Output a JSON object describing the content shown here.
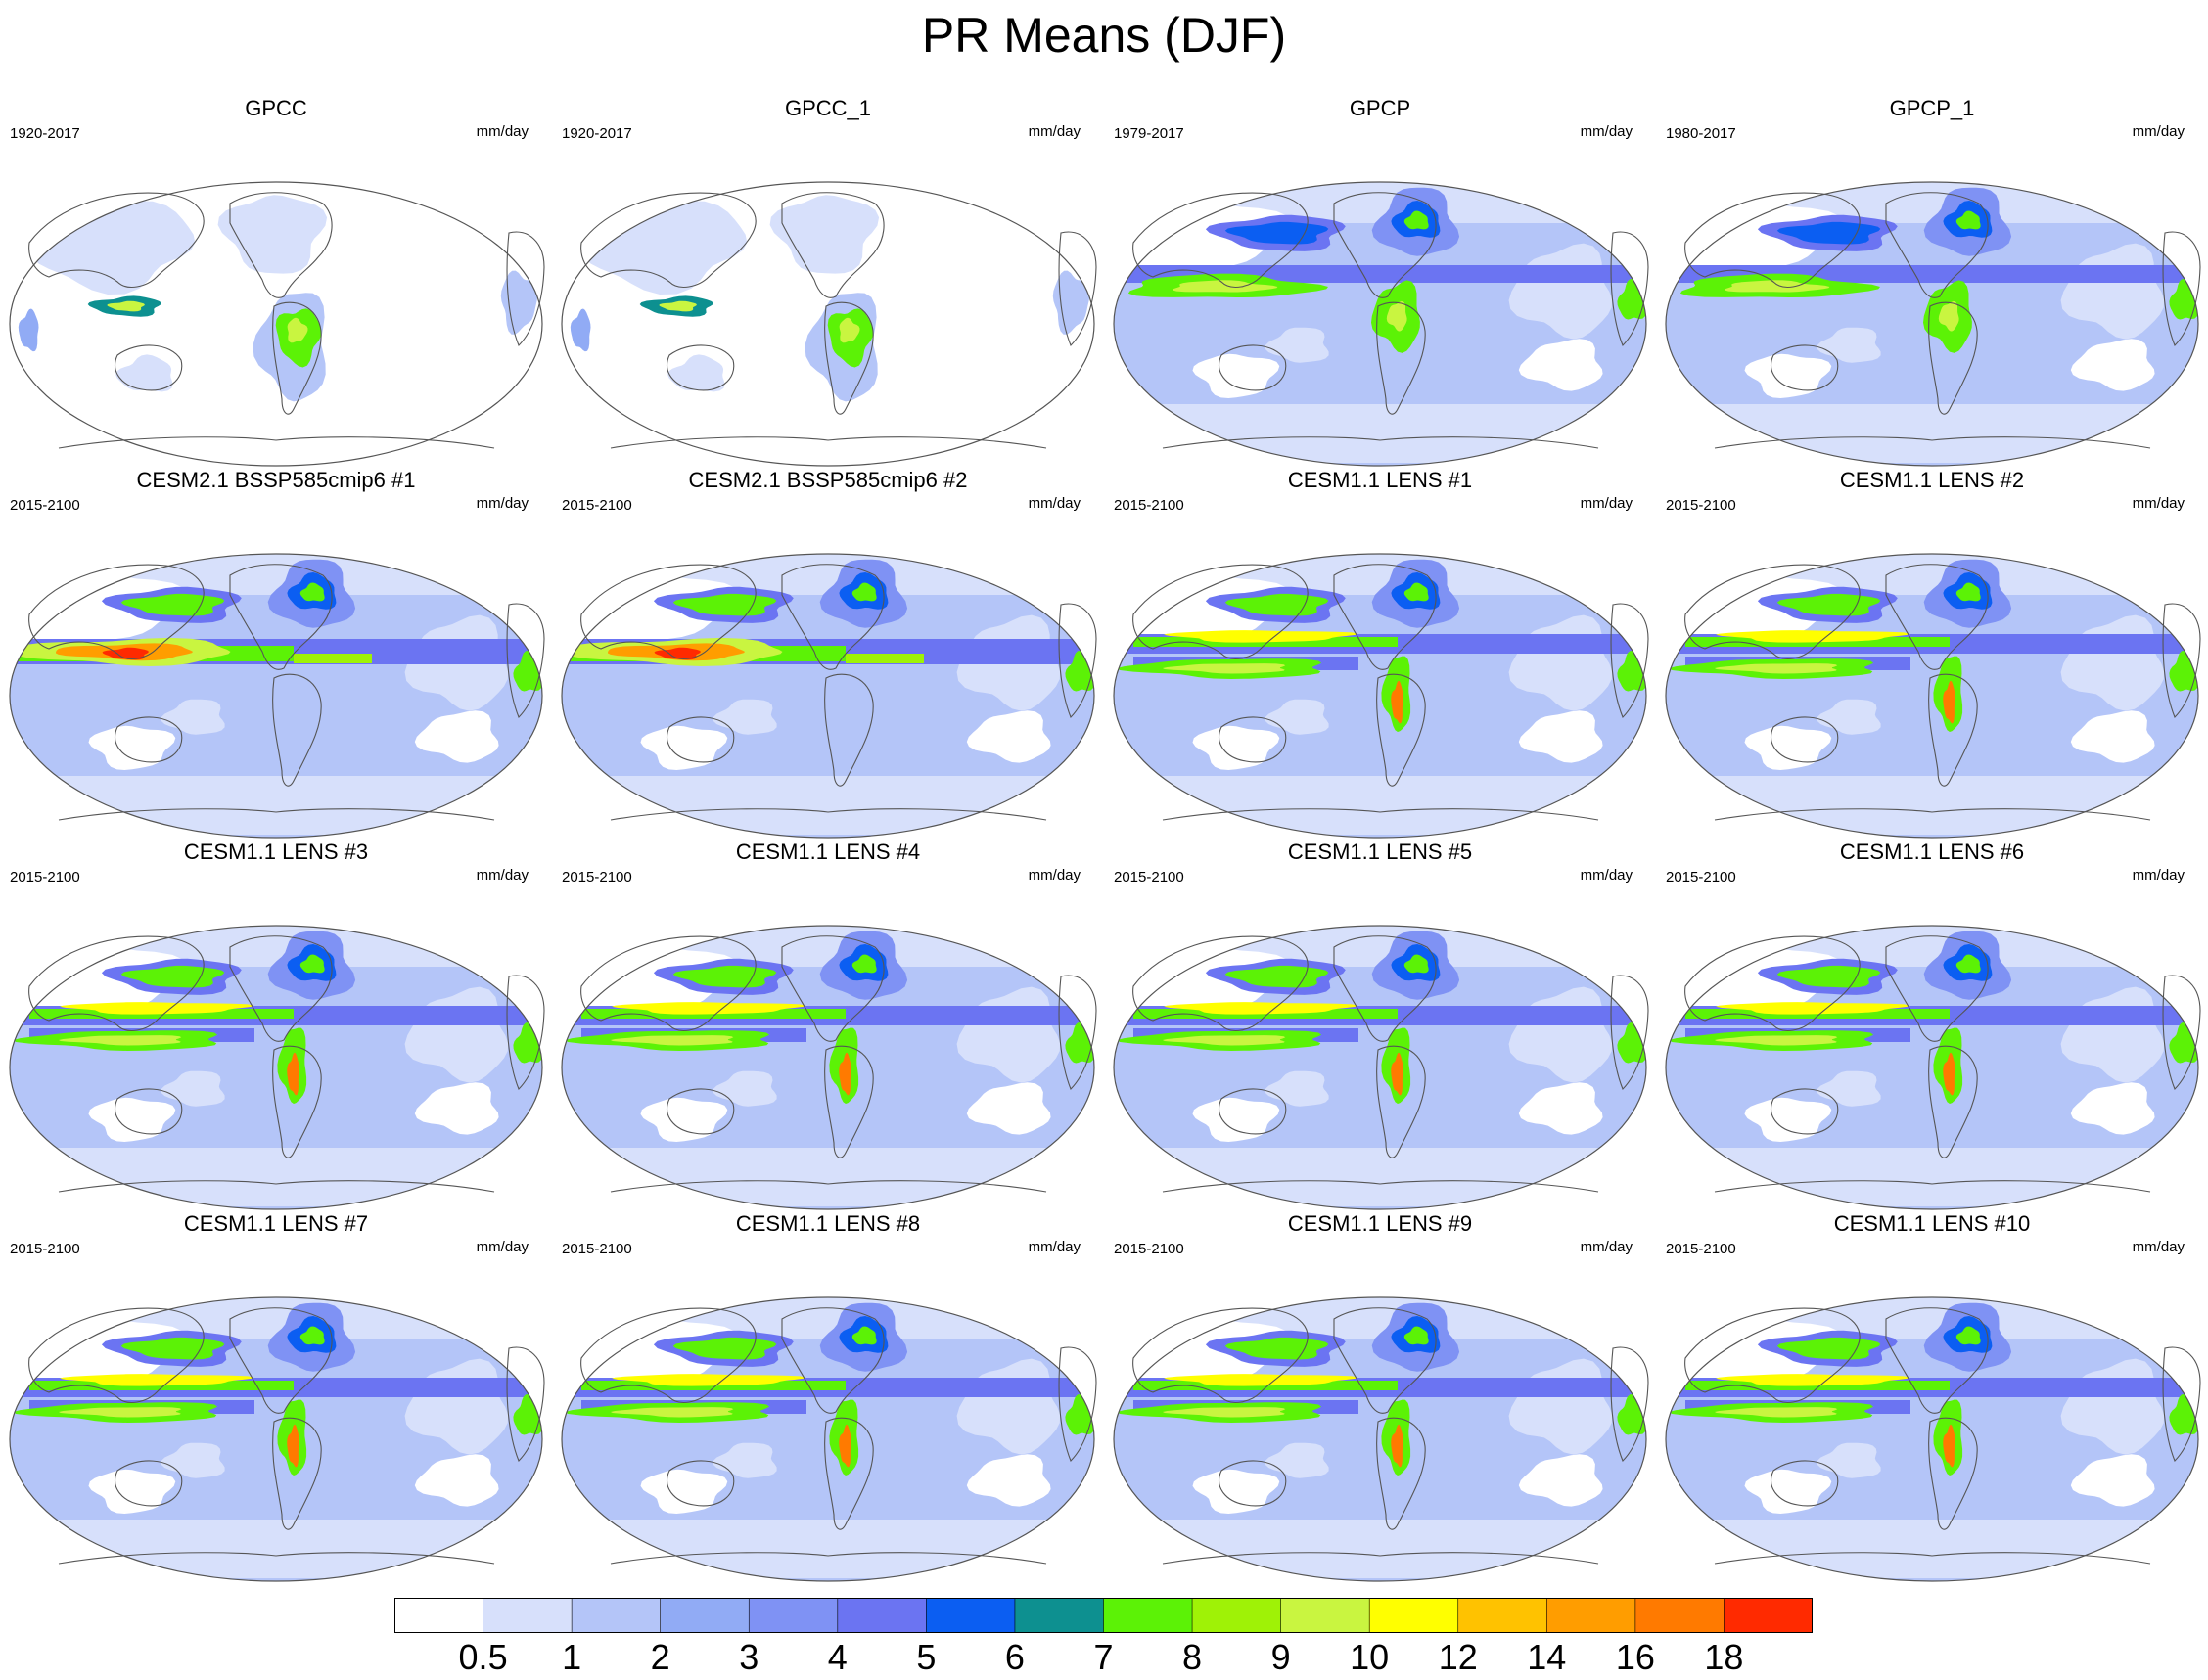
{
  "title": "PR Means (DJF)",
  "colorbar": {
    "colors": [
      "#ffffff",
      "#d7e0fb",
      "#b4c5f8",
      "#91abf5",
      "#7f92f4",
      "#6b74f2",
      "#0b5ef2",
      "#0d9090",
      "#5cf206",
      "#9ff206",
      "#c9f540",
      "#ffff00",
      "#ffc200",
      "#ff9d00",
      "#ff7a00",
      "#ff2a00"
    ],
    "ticks": [
      "0.5",
      "1",
      "2",
      "3",
      "4",
      "5",
      "6",
      "7",
      "8",
      "9",
      "10",
      "12",
      "14",
      "16",
      "18"
    ]
  },
  "panels": [
    {
      "title": "GPCC",
      "years": "1920-2017",
      "units": "mm/day",
      "type": "obs_land"
    },
    {
      "title": "GPCC_1",
      "years": "1920-2017",
      "units": "mm/day",
      "type": "obs_land"
    },
    {
      "title": "GPCP",
      "years": "1979-2017",
      "units": "mm/day",
      "type": "obs_global"
    },
    {
      "title": "GPCP_1",
      "years": "1980-2017",
      "units": "mm/day",
      "type": "obs_global"
    },
    {
      "title": "CESM2.1 BSSP585cmip6 #1",
      "years": "2015-2100",
      "units": "mm/day",
      "type": "cesm2"
    },
    {
      "title": "CESM2.1 BSSP585cmip6 #2",
      "years": "2015-2100",
      "units": "mm/day",
      "type": "cesm2"
    },
    {
      "title": "CESM1.1 LENS #1",
      "years": "2015-2100",
      "units": "mm/day",
      "type": "lens"
    },
    {
      "title": "CESM1.1 LENS #2",
      "years": "2015-2100",
      "units": "mm/day",
      "type": "lens"
    },
    {
      "title": "CESM1.1 LENS #3",
      "years": "2015-2100",
      "units": "mm/day",
      "type": "lens"
    },
    {
      "title": "CESM1.1 LENS #4",
      "years": "2015-2100",
      "units": "mm/day",
      "type": "lens"
    },
    {
      "title": "CESM1.1 LENS #5",
      "years": "2015-2100",
      "units": "mm/day",
      "type": "lens"
    },
    {
      "title": "CESM1.1 LENS #6",
      "years": "2015-2100",
      "units": "mm/day",
      "type": "lens"
    },
    {
      "title": "CESM1.1 LENS #7",
      "years": "2015-2100",
      "units": "mm/day",
      "type": "lens"
    },
    {
      "title": "CESM1.1 LENS #8",
      "years": "2015-2100",
      "units": "mm/day",
      "type": "lens"
    },
    {
      "title": "CESM1.1 LENS #9",
      "years": "2015-2100",
      "units": "mm/day",
      "type": "lens"
    },
    {
      "title": "CESM1.1 LENS #10",
      "years": "2015-2100",
      "units": "mm/day",
      "type": "lens"
    }
  ],
  "chart_data": {
    "type": "heatmap",
    "title": "PR Means (DJF)",
    "variable": "precipitation",
    "units": "mm/day",
    "season": "DJF",
    "levels": [
      0.5,
      1,
      2,
      3,
      4,
      5,
      6,
      7,
      8,
      9,
      10,
      12,
      14,
      16,
      18
    ],
    "layout": "4x4 panel grid"
  }
}
